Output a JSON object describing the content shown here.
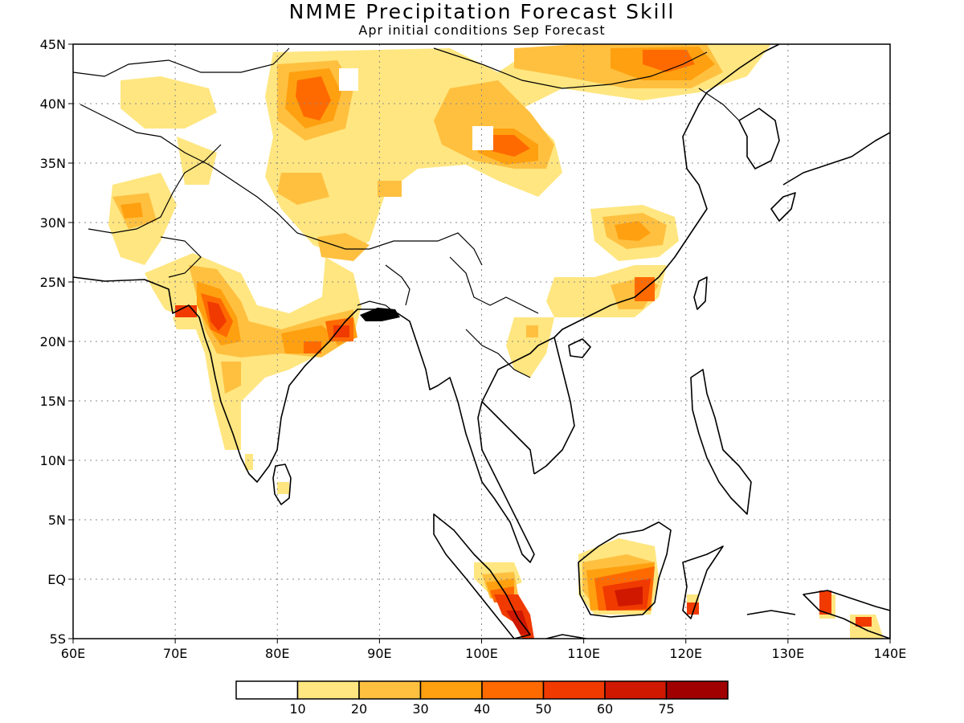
{
  "title": "NMME Precipitation Forecast Skill",
  "subtitle": "Apr initial conditions   Sep Forecast",
  "map": {
    "lon_range": [
      60,
      140
    ],
    "lat_range": [
      -5,
      45
    ],
    "lon_ticks": [
      "60E",
      "70E",
      "80E",
      "90E",
      "100E",
      "110E",
      "120E",
      "130E",
      "140E"
    ],
    "lat_ticks": [
      "45N",
      "40N",
      "35N",
      "30N",
      "25N",
      "20N",
      "15N",
      "10N",
      "5N",
      "EQ",
      "5S"
    ],
    "gridlines": "dotted"
  },
  "colorbar": {
    "labels": [
      "10",
      "20",
      "30",
      "40",
      "50",
      "60",
      "75"
    ],
    "colors": [
      "#ffffff",
      "#ffe680",
      "#ffc040",
      "#ffa010",
      "#ff6a00",
      "#f03a00",
      "#d01800",
      "#a00000"
    ]
  }
}
